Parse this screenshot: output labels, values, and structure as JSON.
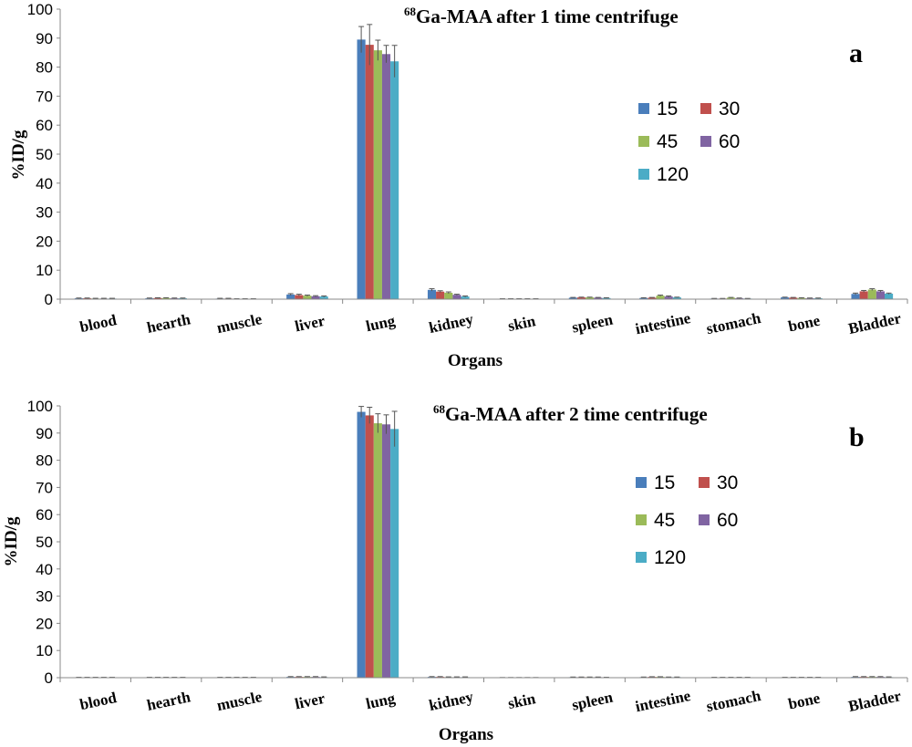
{
  "colors": {
    "15": "#4a7ebb",
    "30": "#c0504d",
    "45": "#9bbb59",
    "60": "#8064a2",
    "120": "#4bacc6"
  },
  "chart_data": [
    {
      "type": "bar",
      "panel": "a",
      "title_sup": "68",
      "title": "Ga-MAA after 1 time centrifuge",
      "xlabel": "Organs",
      "ylabel": "%ID/g",
      "ylim": [
        0,
        100
      ],
      "yticks": [
        0,
        10,
        20,
        30,
        40,
        50,
        60,
        70,
        80,
        90,
        100
      ],
      "legend_position": "right",
      "categories": [
        "blood",
        "hearth",
        "muscle",
        "liver",
        "lung",
        "kidney",
        "skin",
        "spleen",
        "intestine",
        "stomach",
        "bone",
        "Bladder"
      ],
      "series": [
        {
          "name": "15",
          "values": [
            0.3,
            0.3,
            0.2,
            1.6,
            89.5,
            3.2,
            0.1,
            0.5,
            0.4,
            0.2,
            0.6,
            1.8
          ],
          "errors": [
            0.1,
            0.1,
            0.1,
            0.3,
            4.5,
            0.4,
            0.05,
            0.1,
            0.1,
            0.05,
            0.1,
            0.3
          ]
        },
        {
          "name": "30",
          "values": [
            0.3,
            0.4,
            0.2,
            1.4,
            87.7,
            2.6,
            0.1,
            0.6,
            0.5,
            0.2,
            0.5,
            2.7
          ],
          "errors": [
            0.1,
            0.1,
            0.1,
            0.3,
            7.0,
            0.3,
            0.05,
            0.1,
            0.1,
            0.05,
            0.1,
            0.3
          ]
        },
        {
          "name": "45",
          "values": [
            0.2,
            0.4,
            0.1,
            1.2,
            85.8,
            2.2,
            0.1,
            0.6,
            1.2,
            0.5,
            0.4,
            3.3
          ],
          "errors": [
            0.1,
            0.1,
            0.05,
            0.2,
            3.5,
            0.3,
            0.05,
            0.1,
            0.2,
            0.1,
            0.1,
            0.3
          ]
        },
        {
          "name": "60",
          "values": [
            0.2,
            0.3,
            0.1,
            1.0,
            84.5,
            1.5,
            0.1,
            0.5,
            0.9,
            0.3,
            0.3,
            2.7
          ],
          "errors": [
            0.1,
            0.1,
            0.05,
            0.2,
            3.0,
            0.2,
            0.05,
            0.1,
            0.2,
            0.1,
            0.1,
            0.3
          ]
        },
        {
          "name": "120",
          "values": [
            0.2,
            0.3,
            0.1,
            0.9,
            82.0,
            0.9,
            0.1,
            0.4,
            0.6,
            0.2,
            0.3,
            1.9
          ],
          "errors": [
            0.1,
            0.1,
            0.05,
            0.2,
            5.5,
            0.2,
            0.05,
            0.1,
            0.1,
            0.05,
            0.1,
            0.2
          ]
        }
      ]
    },
    {
      "type": "bar",
      "panel": "b",
      "title_sup": "68",
      "title": "Ga-MAA after 2 time centrifuge",
      "xlabel": "Organs",
      "ylabel": "%ID/g",
      "ylim": [
        0,
        100
      ],
      "yticks": [
        0,
        10,
        20,
        30,
        40,
        50,
        60,
        70,
        80,
        90,
        100
      ],
      "legend_position": "right",
      "categories": [
        "blood",
        "hearth",
        "muscle",
        "liver",
        "lung",
        "kidney",
        "skin",
        "spleen",
        "intestine",
        "stomach",
        "bone",
        "Bladder"
      ],
      "series": [
        {
          "name": "15",
          "values": [
            0.1,
            0.1,
            0.1,
            0.3,
            97.8,
            0.3,
            0.05,
            0.2,
            0.2,
            0.1,
            0.1,
            0.3
          ],
          "errors": [
            0.05,
            0.05,
            0.05,
            0.1,
            2.0,
            0.1,
            0.02,
            0.05,
            0.05,
            0.05,
            0.05,
            0.1
          ]
        },
        {
          "name": "30",
          "values": [
            0.1,
            0.1,
            0.1,
            0.3,
            96.5,
            0.3,
            0.05,
            0.2,
            0.3,
            0.1,
            0.1,
            0.3
          ],
          "errors": [
            0.05,
            0.05,
            0.05,
            0.1,
            3.0,
            0.1,
            0.02,
            0.05,
            0.05,
            0.05,
            0.05,
            0.1
          ]
        },
        {
          "name": "45",
          "values": [
            0.1,
            0.1,
            0.1,
            0.3,
            93.6,
            0.2,
            0.05,
            0.2,
            0.3,
            0.1,
            0.1,
            0.3
          ],
          "errors": [
            0.05,
            0.05,
            0.05,
            0.1,
            3.5,
            0.1,
            0.02,
            0.05,
            0.05,
            0.05,
            0.05,
            0.1
          ]
        },
        {
          "name": "60",
          "values": [
            0.1,
            0.1,
            0.1,
            0.3,
            93.2,
            0.2,
            0.05,
            0.2,
            0.2,
            0.1,
            0.1,
            0.3
          ],
          "errors": [
            0.05,
            0.05,
            0.05,
            0.1,
            3.5,
            0.1,
            0.02,
            0.05,
            0.05,
            0.05,
            0.05,
            0.1
          ]
        },
        {
          "name": "120",
          "values": [
            0.1,
            0.1,
            0.1,
            0.2,
            91.5,
            0.2,
            0.05,
            0.1,
            0.2,
            0.1,
            0.1,
            0.2
          ],
          "errors": [
            0.05,
            0.05,
            0.05,
            0.1,
            6.5,
            0.1,
            0.02,
            0.05,
            0.05,
            0.05,
            0.05,
            0.1
          ]
        }
      ]
    }
  ]
}
